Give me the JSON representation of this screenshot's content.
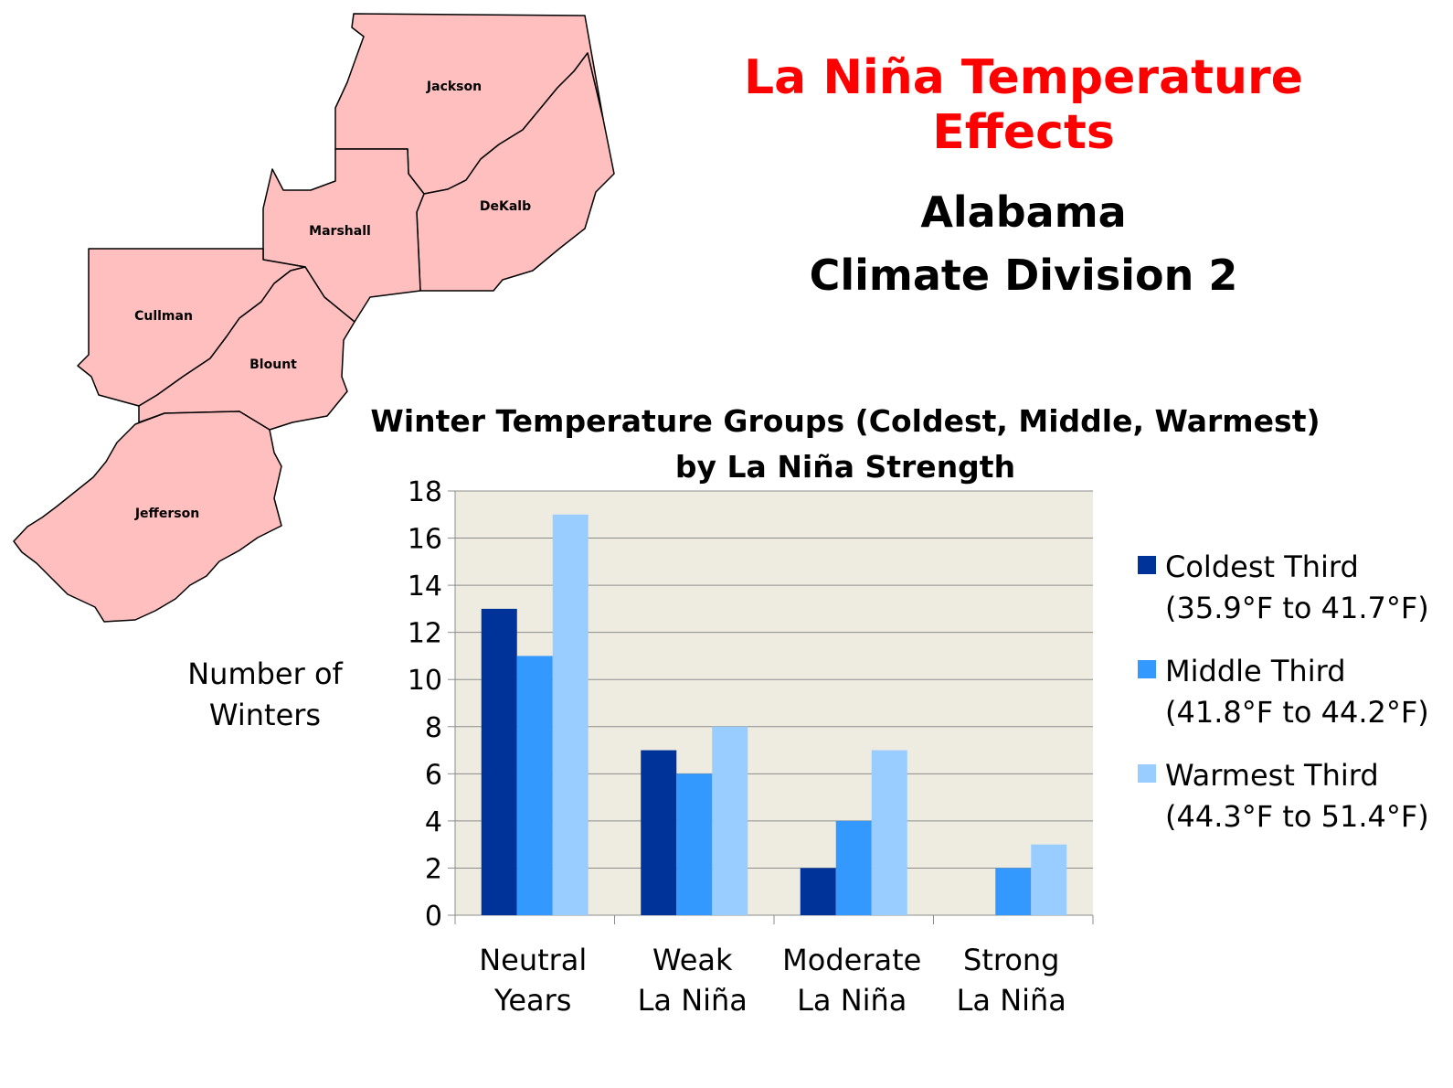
{
  "header": {
    "title": "La Niña Temperature Effects",
    "subtitle_line1": "Alabama",
    "subtitle_line2": "Climate Division 2"
  },
  "map": {
    "fill_color": "#ffbfbf",
    "counties": [
      "Jackson",
      "DeKalb",
      "Marshall",
      "Cullman",
      "Blount",
      "Jefferson"
    ]
  },
  "chart_data": {
    "type": "bar",
    "title_line1": "Winter Temperature Groups (Coldest, Middle, Warmest)",
    "title_line2": "by La Niña Strength",
    "ylabel_line1": "Number of",
    "ylabel_line2": "Winters",
    "xlabel": "",
    "ylim": [
      0,
      18
    ],
    "yticks": [
      "0",
      "2",
      "4",
      "6",
      "8",
      "10",
      "12",
      "14",
      "16",
      "18"
    ],
    "grid": true,
    "plot_background": "#eeece1",
    "legend_position": "right",
    "categories": [
      {
        "line1": "Neutral",
        "line2": "Years"
      },
      {
        "line1": "Weak",
        "line2": "La Niña"
      },
      {
        "line1": "Moderate",
        "line2": "La Niña"
      },
      {
        "line1": "Strong",
        "line2": "La Niña"
      }
    ],
    "series": [
      {
        "name": "Coldest Third",
        "range": "(35.9°F to 41.7°F)",
        "color": "#003399",
        "values": [
          13,
          7,
          2,
          0
        ]
      },
      {
        "name": "Middle Third",
        "range": "(41.8°F to 44.2°F)",
        "color": "#3399ff",
        "values": [
          11,
          6,
          4,
          2
        ]
      },
      {
        "name": "Warmest Third",
        "range": "(44.3°F to 51.4°F)",
        "color": "#99ccff",
        "values": [
          17,
          8,
          7,
          3
        ]
      }
    ]
  }
}
